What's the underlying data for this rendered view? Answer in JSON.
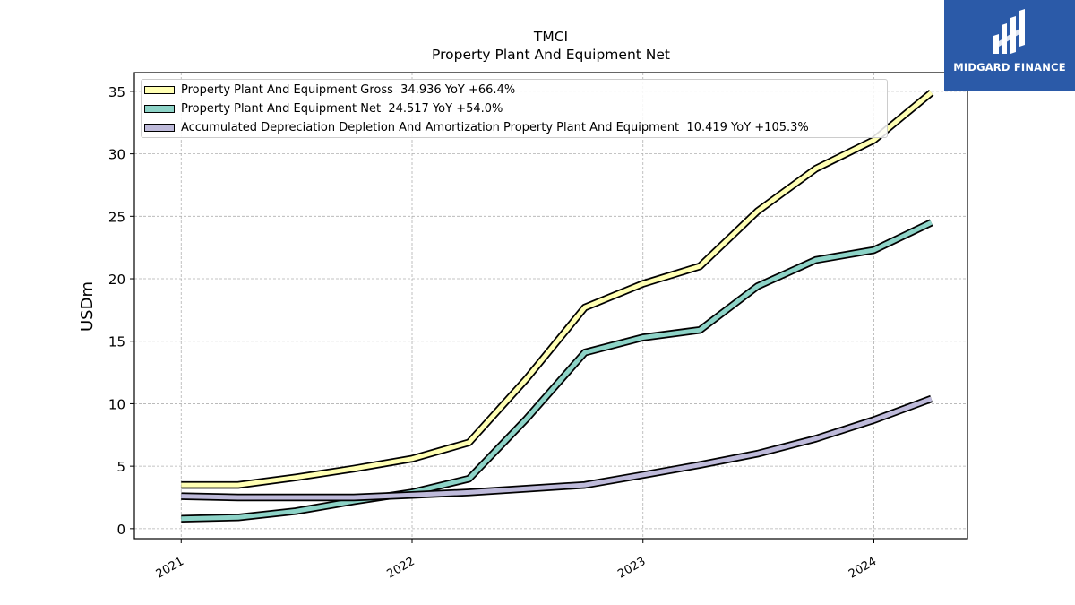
{
  "brand": {
    "name": "MIDGARD FINANCE",
    "color": "#2b5aa8"
  },
  "title_line1": "TMCI",
  "title_line2": "Property Plant And Equipment Net",
  "chart_data": {
    "type": "line",
    "title": "TMCI\nProperty Plant And Equipment Net",
    "ylabel": "USDm",
    "xlabel": "",
    "ylim": [
      -0.8,
      36.5
    ],
    "xlim": [
      "2020-10-19",
      "2024-05-28"
    ],
    "grid": true,
    "legend_position": "top-left",
    "yticks": [
      0,
      5,
      10,
      15,
      20,
      25,
      30,
      35
    ],
    "xticks": [
      "2021",
      "2022",
      "2023",
      "2024"
    ],
    "x": [
      "2021-01-01",
      "2021-04-01",
      "2021-07-01",
      "2021-10-01",
      "2022-01-01",
      "2022-04-01",
      "2022-07-01",
      "2022-10-01",
      "2023-01-01",
      "2023-04-01",
      "2023-07-01",
      "2023-10-01",
      "2024-01-01",
      "2024-04-01"
    ],
    "series": [
      {
        "name": "Property Plant And Equipment Gross",
        "legend": "Property Plant And Equipment Gross  34.936 YoY +66.4%",
        "color": "#ffffb3",
        "values": [
          3.5,
          3.5,
          4.1,
          4.8,
          5.6,
          6.9,
          12.0,
          17.7,
          19.6,
          21.0,
          25.4,
          28.8,
          31.1,
          34.9
        ]
      },
      {
        "name": "Property Plant And Equipment Net",
        "legend": "Property Plant And Equipment Net  24.517 YoY +54.0%",
        "color": "#8dd3c7",
        "values": [
          0.8,
          0.9,
          1.4,
          2.2,
          2.9,
          4.0,
          8.8,
          14.1,
          15.3,
          15.9,
          19.4,
          21.5,
          22.3,
          24.5
        ]
      },
      {
        "name": "Accumulated Depreciation Depletion And Amortization Property Plant And Equipment",
        "legend": "Accumulated Depreciation Depletion And Amortization Property Plant And Equipment  10.419 YoY +105.3%",
        "color": "#bebada",
        "values": [
          2.6,
          2.5,
          2.5,
          2.5,
          2.7,
          2.9,
          3.2,
          3.5,
          4.3,
          5.1,
          6.0,
          7.2,
          8.7,
          10.4
        ]
      }
    ]
  }
}
